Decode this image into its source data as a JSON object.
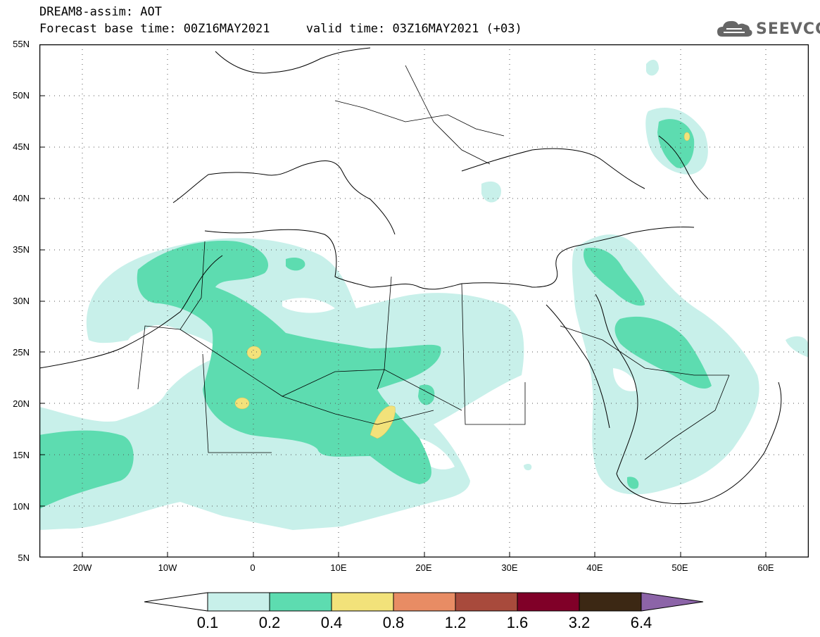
{
  "header": {
    "line1": "DREAM8-assim: AOT",
    "line2": "Forecast base time: 00Z16MAY2021     valid time: 03Z16MAY2021 (+03)"
  },
  "logo": {
    "text": "SEEVCCC",
    "icon": "cloud-icon"
  },
  "map": {
    "region": {
      "lon_min": -25,
      "lon_max": 65,
      "lat_min": 5,
      "lat_max": 55
    },
    "lat_labels": [
      "55N",
      "50N",
      "45N",
      "40N",
      "35N",
      "30N",
      "25N",
      "20N",
      "15N",
      "10N",
      "5N"
    ],
    "lon_labels": [
      "20W",
      "10W",
      "0",
      "10E",
      "20E",
      "30E",
      "40E",
      "50E",
      "60E"
    ],
    "grid": "dotted"
  },
  "colorbar": {
    "labels": [
      "0.1",
      "0.2",
      "0.4",
      "0.8",
      "1.2",
      "1.6",
      "3.2",
      "6.4"
    ],
    "colors": [
      "#c8f0ea",
      "#5ddcb0",
      "#f2e27a",
      "#e88c64",
      "#a84a3c",
      "#800028",
      "#3c2814",
      "#8c64a8"
    ],
    "under_color": "#ffffff"
  }
}
